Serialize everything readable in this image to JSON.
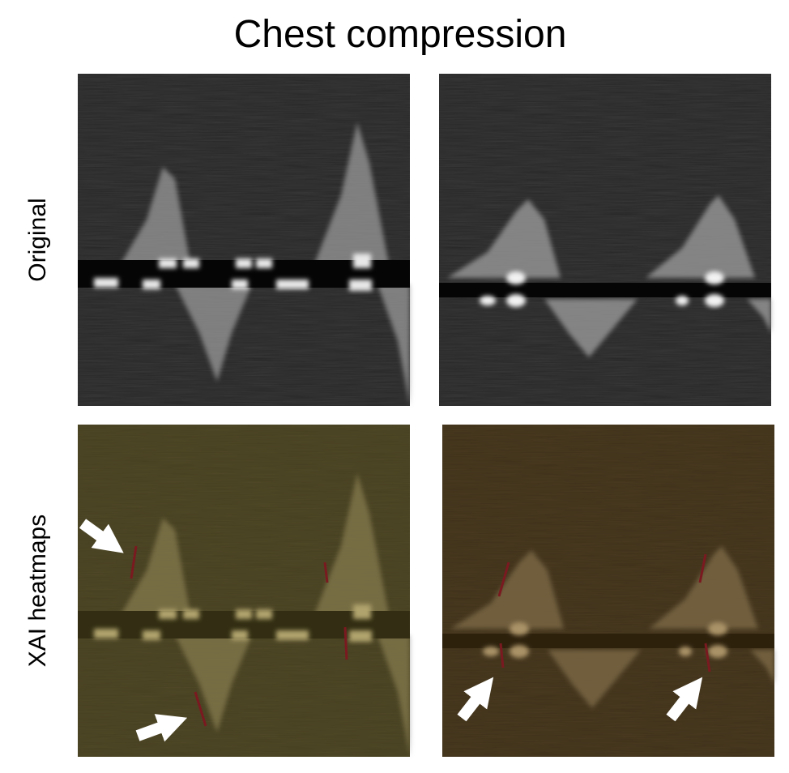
{
  "title": "Chest compression",
  "row_labels": [
    "Original",
    "XAI heatmaps"
  ]
}
